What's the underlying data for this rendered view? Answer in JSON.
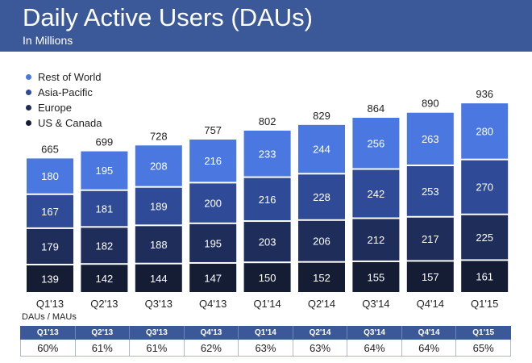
{
  "header": {
    "title": "Daily Active Users (DAUs)",
    "subtitle": "In Millions",
    "color": "#3b5998"
  },
  "chart_data": {
    "type": "bar",
    "stacked": true,
    "title": "Daily Active Users (DAUs)",
    "subtitle": "In Millions",
    "xlabel": "",
    "ylabel": "",
    "ylim": [
      0,
      1000
    ],
    "grid": false,
    "legend_position": "top-left",
    "categories": [
      "Q1'13",
      "Q2'13",
      "Q3'13",
      "Q4'13",
      "Q1'14",
      "Q2'14",
      "Q3'14",
      "Q4'14",
      "Q1'15"
    ],
    "series": [
      {
        "name": "US & Canada",
        "color": "#141d33",
        "values": [
          139,
          142,
          144,
          147,
          150,
          152,
          155,
          157,
          161
        ]
      },
      {
        "name": "Europe",
        "color": "#1e2d5a",
        "values": [
          179,
          182,
          188,
          195,
          203,
          206,
          212,
          217,
          225
        ]
      },
      {
        "name": "Asia-Pacific",
        "color": "#2f4a96",
        "values": [
          167,
          181,
          189,
          200,
          216,
          228,
          242,
          253,
          270
        ]
      },
      {
        "name": "Rest of World",
        "color": "#4a78e0",
        "values": [
          180,
          195,
          208,
          216,
          233,
          244,
          256,
          263,
          280
        ]
      }
    ],
    "totals": [
      665,
      699,
      728,
      757,
      802,
      829,
      864,
      890,
      936
    ]
  },
  "legend": {
    "items": [
      {
        "label": "Rest of World",
        "color": "#4a78e0"
      },
      {
        "label": "Asia-Pacific",
        "color": "#2f4a96"
      },
      {
        "label": "Europe",
        "color": "#1e2d5a"
      },
      {
        "label": "US & Canada",
        "color": "#141d33"
      }
    ]
  },
  "ratio_table": {
    "caption": "DAUs / MAUs",
    "quarters": [
      "Q1'13",
      "Q2'13",
      "Q3'13",
      "Q4'13",
      "Q1'14",
      "Q2'14",
      "Q3'14",
      "Q4'14",
      "Q1'15"
    ],
    "values": [
      "60%",
      "61%",
      "61%",
      "62%",
      "63%",
      "63%",
      "64%",
      "64%",
      "65%"
    ]
  }
}
